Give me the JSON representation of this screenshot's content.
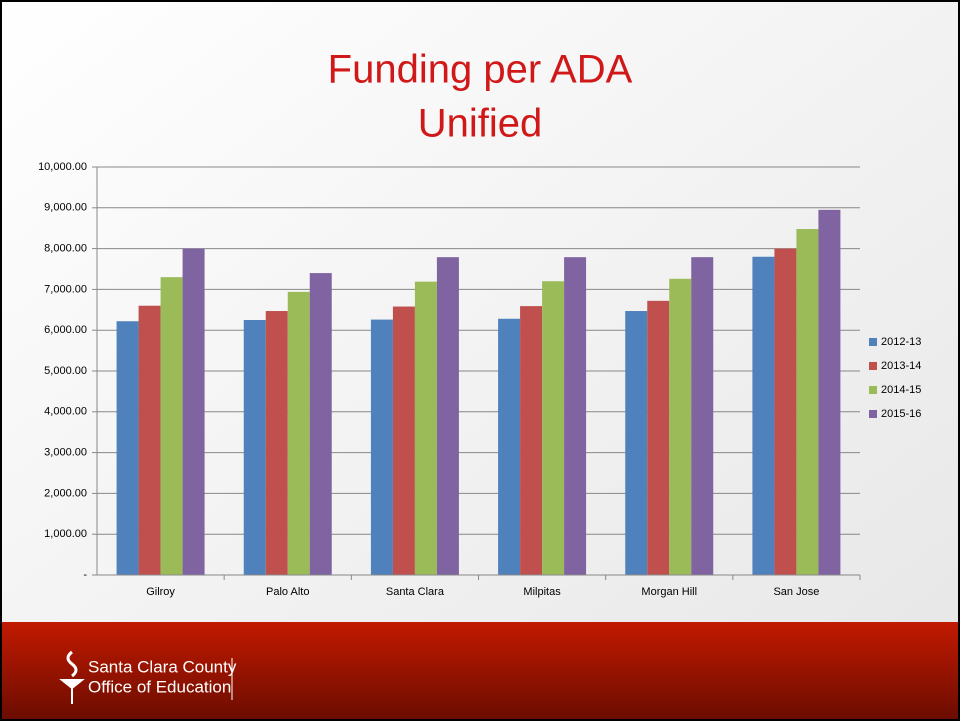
{
  "chart_data": {
    "type": "bar",
    "title": "Funding per ADA",
    "subtitle": "Unified",
    "categories": [
      "Gilroy",
      "Palo Alto",
      "Santa Clara",
      "Milpitas",
      "Morgan Hill",
      "San Jose"
    ],
    "series": [
      {
        "name": "2012-13",
        "color": "#4f81bd",
        "values": [
          6220,
          6250,
          6260,
          6280,
          6470,
          7800
        ]
      },
      {
        "name": "2013-14",
        "color": "#c0504d",
        "values": [
          6600,
          6470,
          6580,
          6590,
          6720,
          8000
        ]
      },
      {
        "name": "2014-15",
        "color": "#9bbb59",
        "values": [
          7300,
          6940,
          7190,
          7200,
          7260,
          8480
        ]
      },
      {
        "name": "2015-16",
        "color": "#8064a2",
        "values": [
          8000,
          7400,
          7790,
          7790,
          7790,
          8950
        ]
      }
    ],
    "ylim": [
      0,
      10000
    ],
    "yticks": [
      {
        "value": 0,
        "label": "-"
      },
      {
        "value": 1000,
        "label": "1,000.00"
      },
      {
        "value": 2000,
        "label": "2,000.00"
      },
      {
        "value": 3000,
        "label": "3,000.00"
      },
      {
        "value": 4000,
        "label": "4,000.00"
      },
      {
        "value": 5000,
        "label": "5,000.00"
      },
      {
        "value": 6000,
        "label": "6,000.00"
      },
      {
        "value": 7000,
        "label": "7,000.00"
      },
      {
        "value": 8000,
        "label": "8,000.00"
      },
      {
        "value": 9000,
        "label": "9,000.00"
      },
      {
        "value": 10000,
        "label": "10,000.00"
      }
    ],
    "grid": true,
    "legend": "right"
  },
  "footer": {
    "lines": [
      "Santa Clara County",
      "Office of Education"
    ]
  }
}
